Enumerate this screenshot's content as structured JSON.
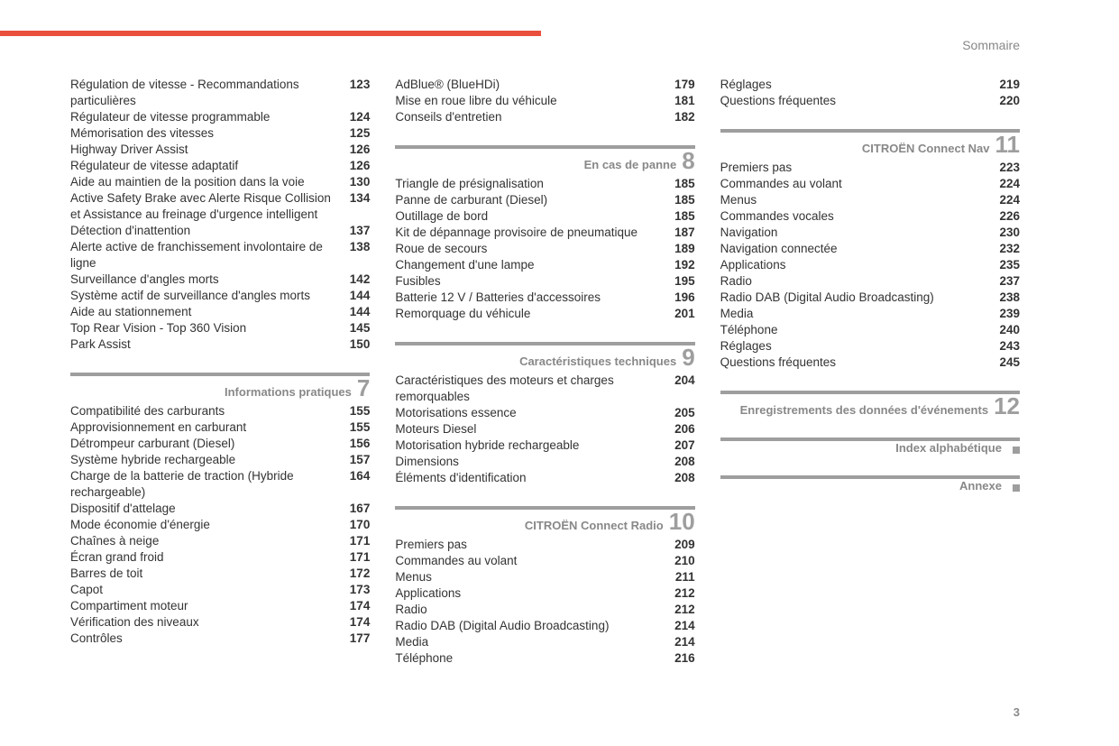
{
  "header_label": "Sommaire",
  "page_number": "3",
  "columns": [
    {
      "blocks": [
        {
          "entries": [
            {
              "label": "Régulation de vitesse - Recommandations particulières",
              "page": "123"
            },
            {
              "label": "Régulateur de vitesse programmable",
              "page": "124"
            },
            {
              "label": "Mémorisation des vitesses",
              "page": "125"
            },
            {
              "label": "Highway Driver Assist",
              "page": "126"
            },
            {
              "label": "Régulateur de vitesse adaptatif",
              "page": "126"
            },
            {
              "label": "Aide au maintien de la position dans la voie",
              "page": "130"
            },
            {
              "label": "Active Safety Brake avec Alerte Risque Collision et Assistance au freinage d'urgence intelligent",
              "page": "134"
            },
            {
              "label": "Détection d'inattention",
              "page": "137"
            },
            {
              "label": "Alerte active de franchissement involontaire de ligne",
              "page": "138"
            },
            {
              "label": "Surveillance d'angles morts",
              "page": "142"
            },
            {
              "label": "Système actif de surveillance d'angles morts",
              "page": "144"
            },
            {
              "label": "Aide au stationnement",
              "page": "144"
            },
            {
              "label": "Top Rear Vision - Top 360 Vision",
              "page": "145"
            },
            {
              "label": "Park Assist",
              "page": "150"
            }
          ]
        },
        {
          "title": "Informations pratiques",
          "number": "7",
          "entries": [
            {
              "label": "Compatibilité des carburants",
              "page": "155"
            },
            {
              "label": "Approvisionnement en carburant",
              "page": "155"
            },
            {
              "label": "Détrompeur carburant (Diesel)",
              "page": "156"
            },
            {
              "label": "Système hybride rechargeable",
              "page": "157"
            },
            {
              "label": "Charge de la batterie de traction (Hybride rechargeable)",
              "page": "164"
            },
            {
              "label": "Dispositif d'attelage",
              "page": "167"
            },
            {
              "label": "Mode économie d'énergie",
              "page": "170"
            },
            {
              "label": "Chaînes à neige",
              "page": "171"
            },
            {
              "label": "Écran grand froid",
              "page": "171"
            },
            {
              "label": "Barres de toit",
              "page": "172"
            },
            {
              "label": "Capot",
              "page": "173"
            },
            {
              "label": "Compartiment moteur",
              "page": "174"
            },
            {
              "label": "Vérification des niveaux",
              "page": "174"
            },
            {
              "label": "Contrôles",
              "page": "177"
            }
          ]
        }
      ]
    },
    {
      "blocks": [
        {
          "entries": [
            {
              "label": "AdBlue® (BlueHDi)",
              "page": "179"
            },
            {
              "label": "Mise en roue libre du véhicule",
              "page": "181"
            },
            {
              "label": "Conseils d'entretien",
              "page": "182"
            }
          ]
        },
        {
          "title": "En cas de panne",
          "number": "8",
          "entries": [
            {
              "label": "Triangle de présignalisation",
              "page": "185"
            },
            {
              "label": "Panne de carburant (Diesel)",
              "page": "185"
            },
            {
              "label": "Outillage de bord",
              "page": "185"
            },
            {
              "label": "Kit de dépannage provisoire de pneumatique",
              "page": "187"
            },
            {
              "label": "Roue de secours",
              "page": "189"
            },
            {
              "label": "Changement d'une lampe",
              "page": "192"
            },
            {
              "label": "Fusibles",
              "page": "195"
            },
            {
              "label": "Batterie 12 V / Batteries d'accessoires",
              "page": "196"
            },
            {
              "label": "Remorquage du véhicule",
              "page": "201"
            }
          ]
        },
        {
          "title": "Caractéristiques techniques",
          "number": "9",
          "entries": [
            {
              "label": "Caractéristiques des moteurs et charges remorquables",
              "page": "204"
            },
            {
              "label": "Motorisations essence",
              "page": "205"
            },
            {
              "label": "Moteurs Diesel",
              "page": "206"
            },
            {
              "label": "Motorisation hybride rechargeable",
              "page": "207"
            },
            {
              "label": "Dimensions",
              "page": "208"
            },
            {
              "label": "Éléments d'identification",
              "page": "208"
            }
          ]
        },
        {
          "title": "CITROËN Connect Radio",
          "number": "10",
          "entries": [
            {
              "label": "Premiers pas",
              "page": "209"
            },
            {
              "label": "Commandes au volant",
              "page": "210"
            },
            {
              "label": "Menus",
              "page": "211"
            },
            {
              "label": "Applications",
              "page": "212"
            },
            {
              "label": "Radio",
              "page": "212"
            },
            {
              "label": "Radio DAB (Digital Audio Broadcasting)",
              "page": "214"
            },
            {
              "label": "Media",
              "page": "214"
            },
            {
              "label": "Téléphone",
              "page": "216"
            }
          ]
        }
      ]
    },
    {
      "blocks": [
        {
          "entries": [
            {
              "label": "Réglages",
              "page": "219"
            },
            {
              "label": "Questions fréquentes",
              "page": "220"
            }
          ]
        },
        {
          "title": "CITROËN Connect Nav",
          "number": "11",
          "entries": [
            {
              "label": "Premiers pas",
              "page": "223"
            },
            {
              "label": "Commandes au volant",
              "page": "224"
            },
            {
              "label": "Menus",
              "page": "224"
            },
            {
              "label": "Commandes vocales",
              "page": "226"
            },
            {
              "label": "Navigation",
              "page": "230"
            },
            {
              "label": "Navigation connectée",
              "page": "232"
            },
            {
              "label": "Applications",
              "page": "235"
            },
            {
              "label": "Radio",
              "page": "237"
            },
            {
              "label": "Radio DAB (Digital Audio Broadcasting)",
              "page": "238"
            },
            {
              "label": "Media",
              "page": "239"
            },
            {
              "label": "Téléphone",
              "page": "240"
            },
            {
              "label": "Réglages",
              "page": "243"
            },
            {
              "label": "Questions fréquentes",
              "page": "245"
            }
          ]
        },
        {
          "title": "Enregistrements des données d'événements",
          "number": "12",
          "entries": []
        },
        {
          "title": "Index alphabétique",
          "no_number": true,
          "entries": []
        },
        {
          "title": "Annexe",
          "no_number": true,
          "entries": []
        }
      ]
    }
  ]
}
